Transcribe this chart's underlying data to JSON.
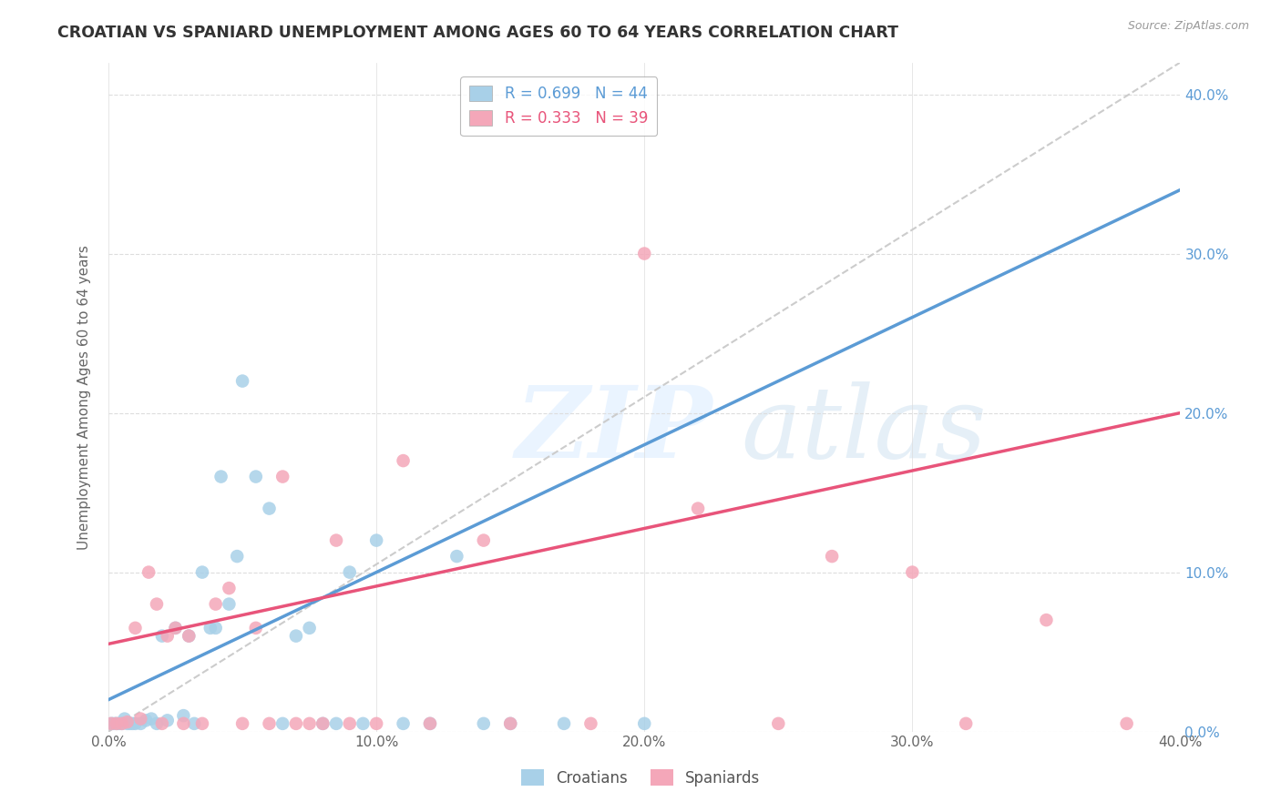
{
  "title": "CROATIAN VS SPANIARD UNEMPLOYMENT AMONG AGES 60 TO 64 YEARS CORRELATION CHART",
  "source": "Source: ZipAtlas.com",
  "ylabel": "Unemployment Among Ages 60 to 64 years",
  "xlim": [
    0.0,
    0.4
  ],
  "ylim": [
    0.0,
    0.42
  ],
  "yticks": [
    0.0,
    0.1,
    0.2,
    0.3,
    0.4
  ],
  "xticks": [
    0.0,
    0.1,
    0.2,
    0.3,
    0.4
  ],
  "croatians_color": "#a8d0e8",
  "spaniards_color": "#f4a7b9",
  "croatians_line_color": "#5b9bd5",
  "spaniards_line_color": "#e8547a",
  "diagonal_color": "#cccccc",
  "legend_croatians_R": "0.699",
  "legend_croatians_N": "44",
  "legend_spaniards_R": "0.333",
  "legend_spaniards_N": "39",
  "background_color": "#ffffff",
  "grid_color": "#dddddd",
  "croatians_x": [
    0.001,
    0.002,
    0.003,
    0.004,
    0.005,
    0.006,
    0.007,
    0.008,
    0.009,
    0.01,
    0.012,
    0.014,
    0.016,
    0.018,
    0.02,
    0.022,
    0.025,
    0.028,
    0.03,
    0.032,
    0.035,
    0.038,
    0.04,
    0.042,
    0.045,
    0.048,
    0.05,
    0.055,
    0.06,
    0.065,
    0.07,
    0.075,
    0.08,
    0.085,
    0.09,
    0.095,
    0.1,
    0.11,
    0.12,
    0.13,
    0.14,
    0.15,
    0.17,
    0.2
  ],
  "croatians_y": [
    0.005,
    0.005,
    0.005,
    0.005,
    0.005,
    0.008,
    0.005,
    0.005,
    0.005,
    0.005,
    0.005,
    0.007,
    0.008,
    0.005,
    0.06,
    0.007,
    0.065,
    0.01,
    0.06,
    0.005,
    0.1,
    0.065,
    0.065,
    0.16,
    0.08,
    0.11,
    0.22,
    0.16,
    0.14,
    0.005,
    0.06,
    0.065,
    0.005,
    0.005,
    0.1,
    0.005,
    0.12,
    0.005,
    0.005,
    0.11,
    0.005,
    0.005,
    0.005,
    0.005
  ],
  "spaniards_x": [
    0.001,
    0.003,
    0.005,
    0.007,
    0.01,
    0.012,
    0.015,
    0.018,
    0.02,
    0.022,
    0.025,
    0.028,
    0.03,
    0.035,
    0.04,
    0.045,
    0.05,
    0.055,
    0.06,
    0.065,
    0.07,
    0.075,
    0.08,
    0.085,
    0.09,
    0.1,
    0.11,
    0.12,
    0.14,
    0.15,
    0.18,
    0.2,
    0.22,
    0.25,
    0.27,
    0.3,
    0.32,
    0.35,
    0.38
  ],
  "spaniards_y": [
    0.005,
    0.005,
    0.005,
    0.006,
    0.065,
    0.008,
    0.1,
    0.08,
    0.005,
    0.06,
    0.065,
    0.005,
    0.06,
    0.005,
    0.08,
    0.09,
    0.005,
    0.065,
    0.005,
    0.16,
    0.005,
    0.005,
    0.005,
    0.12,
    0.005,
    0.005,
    0.17,
    0.005,
    0.12,
    0.005,
    0.005,
    0.3,
    0.14,
    0.005,
    0.11,
    0.1,
    0.005,
    0.07,
    0.005
  ]
}
